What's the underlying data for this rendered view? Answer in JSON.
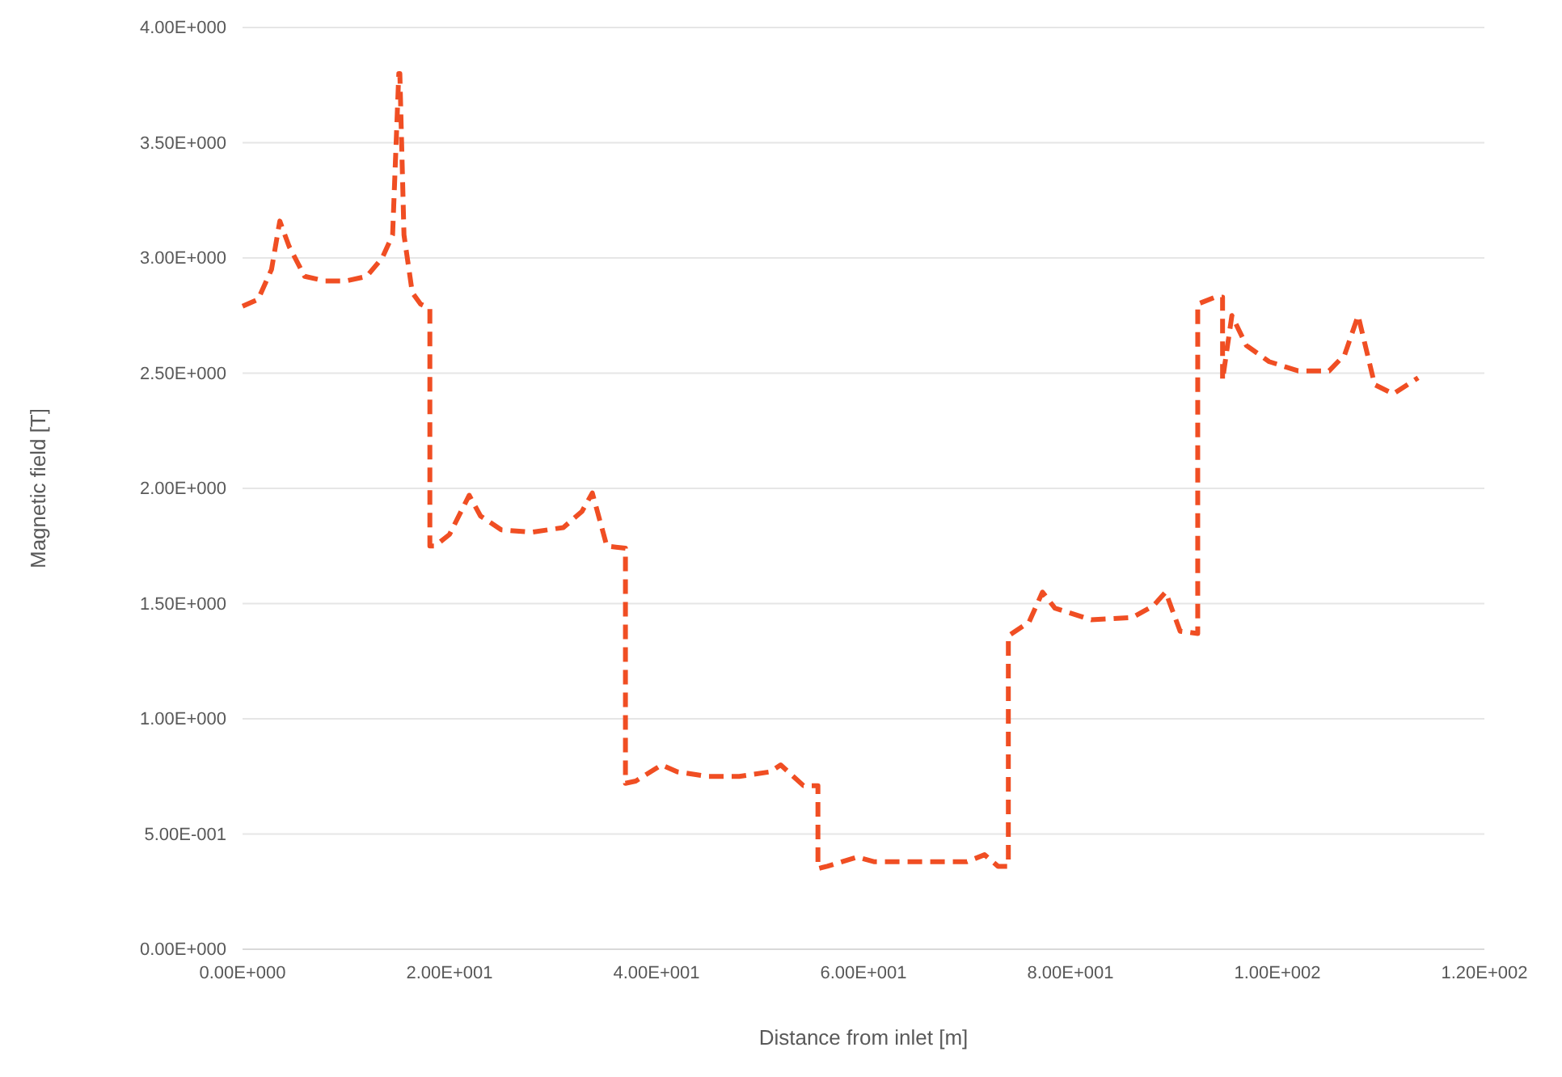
{
  "chart_data": {
    "type": "line",
    "xlabel": "Distance from inlet [m]",
    "ylabel": "Magnetic field [T]",
    "xlim": [
      0,
      120
    ],
    "xticks": [
      {
        "value": 0,
        "label": "0.00E+000"
      },
      {
        "value": 20,
        "label": "2.00E+001"
      },
      {
        "value": 40,
        "label": "4.00E+001"
      },
      {
        "value": 60,
        "label": "6.00E+001"
      },
      {
        "value": 80,
        "label": "8.00E+001"
      },
      {
        "value": 100,
        "label": "1.00E+002"
      },
      {
        "value": 120,
        "label": "1.20E+002"
      }
    ],
    "ylim": [
      0,
      4
    ],
    "yticks": [
      {
        "value": 0,
        "label": "0.00E+000"
      },
      {
        "value": 0.5,
        "label": "5.00E-001"
      },
      {
        "value": 1,
        "label": "1.00E+000"
      },
      {
        "value": 1.5,
        "label": "1.50E+000"
      },
      {
        "value": 2,
        "label": "2.00E+000"
      },
      {
        "value": 2.5,
        "label": "2.50E+000"
      },
      {
        "value": 3,
        "label": "3.00E+000"
      },
      {
        "value": 3.5,
        "label": "3.50E+000"
      },
      {
        "value": 4,
        "label": "4.00E+000"
      }
    ],
    "grid": "y",
    "marker": "none",
    "line_style": "dashed",
    "series": [
      {
        "color": "#f04e23",
        "x": [
          0,
          1.5,
          2.8,
          3.6,
          4.5,
          6,
          8,
          10,
          12,
          13.5,
          14.5,
          15.1,
          15.2,
          15.6,
          16.4,
          17.2,
          18.1,
          18.1,
          18.6,
          20,
          21.9,
          23,
          25,
          28,
          31,
          32.8,
          33.8,
          35.2,
          37,
          37,
          38,
          40.5,
          42,
          45,
          48,
          51,
          52,
          54.2,
          55.6,
          55.6,
          56.5,
          59.4,
          61,
          65,
          70,
          71.7,
          73,
          74,
          74,
          76,
          77.3,
          78.5,
          82,
          86,
          88,
          89.2,
          90.6,
          92.3,
          92.3,
          94,
          94.7,
          94.7,
          95.6,
          97,
          99.2,
          102,
          105,
          106.5,
          107.8,
          109.4,
          111.2,
          113.6
        ],
        "values": [
          2.79,
          2.82,
          2.95,
          3.16,
          3.05,
          2.92,
          2.9,
          2.9,
          2.92,
          3.0,
          3.1,
          3.8,
          3.8,
          3.1,
          2.85,
          2.8,
          2.78,
          1.75,
          1.75,
          1.8,
          1.97,
          1.88,
          1.82,
          1.81,
          1.83,
          1.9,
          1.98,
          1.75,
          1.74,
          0.72,
          0.73,
          0.8,
          0.77,
          0.75,
          0.75,
          0.77,
          0.8,
          0.71,
          0.71,
          0.35,
          0.36,
          0.4,
          0.38,
          0.38,
          0.38,
          0.41,
          0.36,
          0.36,
          1.36,
          1.42,
          1.55,
          1.48,
          1.43,
          1.44,
          1.49,
          1.55,
          1.38,
          1.37,
          2.8,
          2.83,
          2.83,
          2.47,
          2.75,
          2.62,
          2.55,
          2.51,
          2.51,
          2.58,
          2.75,
          2.45,
          2.41,
          2.48
        ]
      }
    ]
  }
}
